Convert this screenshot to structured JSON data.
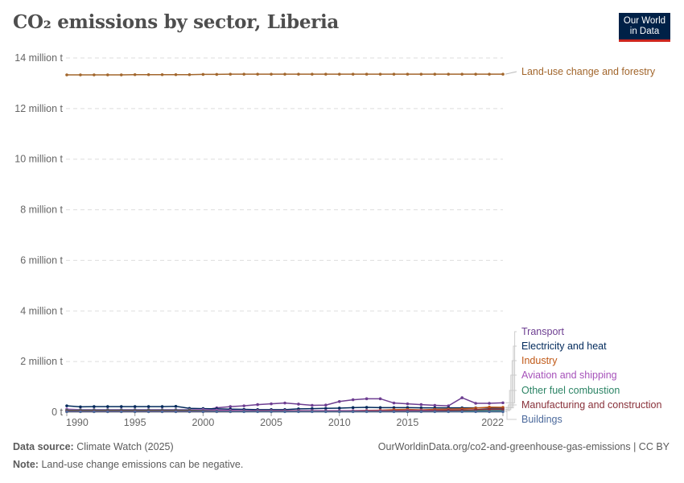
{
  "title": "CO₂ emissions by sector, Liberia",
  "logo": {
    "line1": "Our World",
    "line2": "in Data"
  },
  "footer": {
    "source_label": "Data source:",
    "source": "Climate Watch (2025)",
    "url": "OurWorldinData.org/co2-and-greenhouse-gas-emissions | CC BY",
    "note_label": "Note:",
    "note": "Land-use change emissions can be negative."
  },
  "chart_data": {
    "type": "line",
    "title": "CO₂ emissions by sector, Liberia",
    "x": [
      1990,
      1991,
      1992,
      1993,
      1994,
      1995,
      1996,
      1997,
      1998,
      1999,
      2000,
      2001,
      2002,
      2003,
      2004,
      2005,
      2006,
      2007,
      2008,
      2009,
      2010,
      2011,
      2012,
      2013,
      2014,
      2015,
      2016,
      2017,
      2018,
      2019,
      2020,
      2021,
      2022
    ],
    "xticks": [
      "1990",
      "1995",
      "2000",
      "2005",
      "2010",
      "2015",
      "2022"
    ],
    "yticks": [
      {
        "v": 0,
        "label": "0 t"
      },
      {
        "v": 2000000,
        "label": "2 million t"
      },
      {
        "v": 4000000,
        "label": "4 million t"
      },
      {
        "v": 6000000,
        "label": "6 million t"
      },
      {
        "v": 8000000,
        "label": "8 million t"
      },
      {
        "v": 10000000,
        "label": "10 million t"
      },
      {
        "v": 12000000,
        "label": "12 million t"
      },
      {
        "v": 14000000,
        "label": "14 million t"
      }
    ],
    "ylim": [
      0,
      14000000
    ],
    "grid": true,
    "legend": "right, labels at line ends",
    "series": [
      {
        "name": "Land-use change and forestry",
        "color": "#a2662c",
        "values": [
          13.33,
          13.33,
          13.33,
          13.33,
          13.33,
          13.34,
          13.34,
          13.34,
          13.34,
          13.34,
          13.35,
          13.35,
          13.36,
          13.36,
          13.36,
          13.36,
          13.36,
          13.36,
          13.36,
          13.36,
          13.36,
          13.36,
          13.36,
          13.36,
          13.36,
          13.36,
          13.36,
          13.36,
          13.36,
          13.36,
          13.36,
          13.36,
          13.36
        ]
      },
      {
        "name": "Transport",
        "color": "#6d3e91",
        "values": [
          0.07,
          0.07,
          0.07,
          0.07,
          0.07,
          0.07,
          0.07,
          0.07,
          0.07,
          0.07,
          0.08,
          0.17,
          0.22,
          0.25,
          0.3,
          0.33,
          0.36,
          0.32,
          0.27,
          0.28,
          0.42,
          0.49,
          0.53,
          0.53,
          0.36,
          0.33,
          0.3,
          0.27,
          0.25,
          0.57,
          0.35,
          0.35,
          0.37
        ]
      },
      {
        "name": "Electricity and heat",
        "color": "#00295b",
        "values": [
          0.25,
          0.21,
          0.22,
          0.22,
          0.22,
          0.22,
          0.22,
          0.22,
          0.23,
          0.15,
          0.14,
          0.13,
          0.12,
          0.11,
          0.1,
          0.1,
          0.1,
          0.13,
          0.14,
          0.15,
          0.16,
          0.18,
          0.19,
          0.18,
          0.18,
          0.18,
          0.17,
          0.17,
          0.17,
          0.17,
          0.17,
          0.17,
          0.17
        ]
      },
      {
        "name": "Industry",
        "color": "#c05917",
        "values": [
          0.02,
          0.02,
          0.02,
          0.02,
          0.02,
          0.02,
          0.02,
          0.02,
          0.02,
          0.02,
          0.02,
          0.02,
          0.02,
          0.03,
          0.06,
          0.06,
          0.06,
          0.06,
          0.05,
          0.05,
          0.05,
          0.06,
          0.07,
          0.08,
          0.1,
          0.11,
          0.09,
          0.11,
          0.12,
          0.13,
          0.16,
          0.2,
          0.19
        ]
      },
      {
        "name": "Aviation and shipping",
        "color": "#a652ba",
        "values": [
          0.12,
          0.1,
          0.1,
          0.1,
          0.1,
          0.1,
          0.1,
          0.1,
          0.1,
          0.1,
          0.1,
          0.08,
          0.07,
          0.06,
          0.06,
          0.06,
          0.06,
          0.06,
          0.06,
          0.06,
          0.06,
          0.06,
          0.06,
          0.06,
          0.06,
          0.07,
          0.07,
          0.07,
          0.08,
          0.08,
          0.09,
          0.1,
          0.1
        ]
      },
      {
        "name": "Other fuel combustion",
        "color": "#2c8465",
        "values": [
          0.08,
          0.08,
          0.08,
          0.08,
          0.08,
          0.08,
          0.08,
          0.08,
          0.08,
          0.08,
          0.06,
          0.04,
          0.03,
          0.03,
          0.03,
          0.03,
          0.03,
          0.03,
          0.03,
          0.03,
          0.03,
          0.03,
          0.03,
          0.03,
          0.03,
          0.03,
          0.03,
          0.03,
          0.03,
          0.04,
          0.05,
          0.06,
          0.06
        ]
      },
      {
        "name": "Manufacturing and construction",
        "color": "#883039",
        "values": [
          0.05,
          0.05,
          0.05,
          0.05,
          0.05,
          0.05,
          0.05,
          0.05,
          0.05,
          0.05,
          0.04,
          0.03,
          0.03,
          0.03,
          0.03,
          0.03,
          0.03,
          0.03,
          0.03,
          0.03,
          0.03,
          0.03,
          0.04,
          0.04,
          0.05,
          0.05,
          0.05,
          0.06,
          0.07,
          0.08,
          0.1,
          0.12,
          0.12
        ]
      },
      {
        "name": "Buildings",
        "color": "#4c6a9c",
        "values": [
          0.02,
          0.02,
          0.02,
          0.02,
          0.02,
          0.02,
          0.02,
          0.02,
          0.02,
          0.02,
          0.02,
          0.02,
          0.02,
          0.02,
          0.02,
          0.02,
          0.02,
          0.02,
          0.02,
          0.02,
          0.02,
          0.02,
          0.02,
          0.02,
          0.02,
          0.02,
          0.02,
          0.02,
          0.02,
          0.02,
          0.02,
          0.02,
          0.02
        ]
      }
    ],
    "value_unit_note": "series values in million t"
  }
}
